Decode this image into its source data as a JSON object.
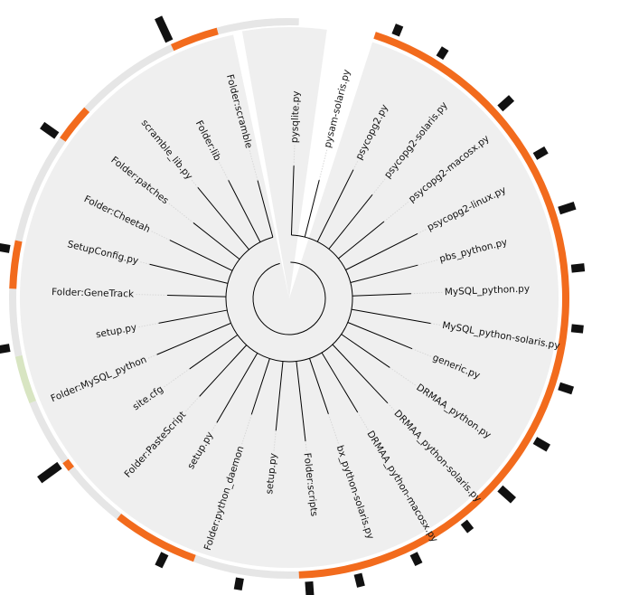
{
  "tree": {
    "leaves": [
      {
        "label": "Folder:scramble",
        "group": "g1",
        "bar": 0
      },
      {
        "label": "Folder:lib",
        "group": "g1",
        "bar": 0
      },
      {
        "label": "scramble_lib.py",
        "group": "g1",
        "bar": 0
      },
      {
        "label": "Folder:patches",
        "group": "g1",
        "bar": 0.7
      },
      {
        "label": "Folder:Cheetah",
        "group": "g1",
        "bar": 0
      },
      {
        "label": "SetupConfig.py",
        "group": "g1",
        "bar": 0
      },
      {
        "label": "Folder:GeneTrack",
        "group": "g1",
        "bar": 0.5
      },
      {
        "label": "setup.py",
        "group": "g1",
        "bar": 0
      },
      {
        "label": "Folder:MySQL_python",
        "group": "g1",
        "bar": 0.1
      },
      {
        "label": "site.cfg",
        "group": "g1",
        "bar": 0
      },
      {
        "label": "Folder:PasteScript",
        "group": "g1",
        "bar": 0.15
      },
      {
        "label": "setup.py",
        "group": "g1",
        "bar": 0
      },
      {
        "label": "Folder:python_daemon",
        "group": "g1",
        "bar": 0.9
      },
      {
        "label": "setup.py",
        "group": "g1",
        "bar": 0.25
      },
      {
        "label": "Folder:scripts",
        "group": "g1",
        "bar": 0
      },
      {
        "label": "bx_python-solaris.py",
        "group": "g1",
        "bar": 0.12
      },
      {
        "label": "DRMAA_python-macosx.py",
        "group": "g1",
        "bar": 0.25
      },
      {
        "label": "DRMAA_python-solaris.py",
        "group": "g1",
        "bar": 0.35
      },
      {
        "label": "DRMAA_python.py",
        "group": "g1",
        "bar": 0.4
      },
      {
        "label": "generic.py",
        "group": "g1",
        "bar": 0.3
      },
      {
        "label": "MySQL_python-solaris.py",
        "group": "g1",
        "bar": 0.15
      },
      {
        "label": "MySQL_python.py",
        "group": "g1",
        "bar": 0.7
      },
      {
        "label": "pbs_python.py",
        "group": "g1",
        "bar": 0.75
      },
      {
        "label": "psycopg2-linux.py",
        "group": "g1",
        "bar": 0.55
      },
      {
        "label": "psycopg2-macosx.py",
        "group": "g1",
        "bar": 0.2
      },
      {
        "label": "psycopg2-solaris.py",
        "group": "g1",
        "bar": 0.35
      },
      {
        "label": "psycopg2.py",
        "group": "g1",
        "bar": 0.5
      },
      {
        "label": "pysam-solaris.py",
        "group": "g1",
        "bar": 0.45
      },
      {
        "label": "pysqlite.py",
        "group": "g1",
        "bar": 0.25
      }
    ]
  },
  "colors": {
    "wedge_fill": "#efefef",
    "ring_track": "#e6e6e6",
    "ring_orange": "#f26b1d",
    "ring_green": "#d8e5c2",
    "bar": "#111111",
    "branch": "#000000",
    "label": "#111111"
  },
  "icons": {}
}
